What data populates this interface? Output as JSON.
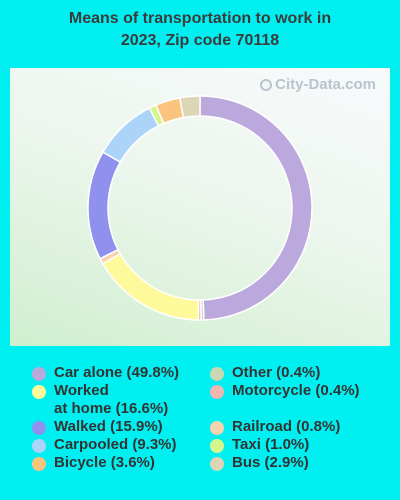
{
  "title": {
    "line1": "Means of transportation to work in",
    "line2": "2023, Zip code 70118"
  },
  "watermark": "City-Data.com",
  "chart_data": {
    "type": "pie",
    "variant": "donut",
    "title": "Means of transportation to work in 2023, Zip code 70118",
    "slices": [
      {
        "name": "Car alone",
        "value": 49.8,
        "label": "Car alone (49.8%)",
        "color": "#bba8dc"
      },
      {
        "name": "Other",
        "value": 0.4,
        "label": "Other (0.4%)",
        "color": "#c8d8b0"
      },
      {
        "name": "Worked at home",
        "value": 16.6,
        "label_lines": [
          "Worked",
          "at home (16.6%)"
        ],
        "color": "#fef99a"
      },
      {
        "name": "Motorcycle",
        "value": 0.4,
        "label": "Motorcycle (0.4%)",
        "color": "#f2b6b0"
      },
      {
        "name": "Walked",
        "value": 15.9,
        "label": "Walked (15.9%)",
        "color": "#9090ef"
      },
      {
        "name": "Railroad",
        "value": 0.8,
        "label": "Railroad (0.8%)",
        "color": "#f8d2ae"
      },
      {
        "name": "Carpooled",
        "value": 9.3,
        "label": "Carpooled (9.3%)",
        "color": "#acd4f8"
      },
      {
        "name": "Taxi",
        "value": 1.0,
        "label": "Taxi (1.0%)",
        "color": "#d4f68a"
      },
      {
        "name": "Bicycle",
        "value": 3.6,
        "label": "Bicycle (3.6%)",
        "color": "#fac47e"
      },
      {
        "name": "Bus",
        "value": 2.9,
        "label": "Bus (2.9%)",
        "color": "#dcd6b6"
      }
    ],
    "legend_placement": "bottom"
  }
}
